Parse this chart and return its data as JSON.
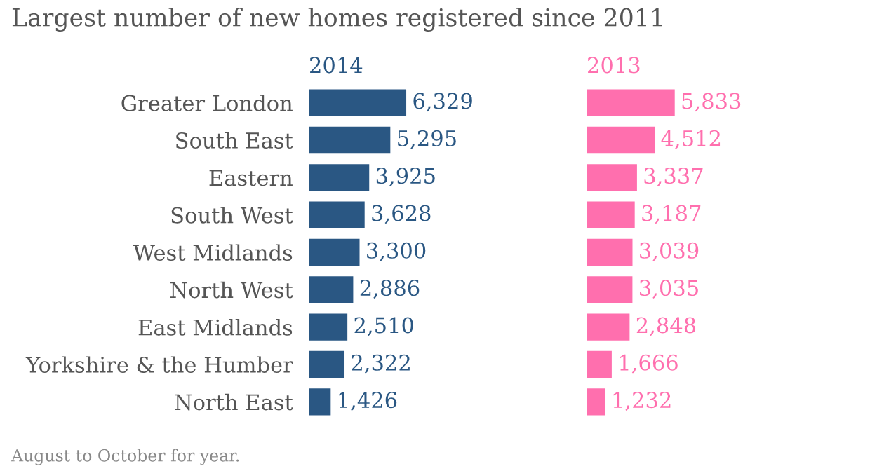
{
  "chart_data": [
    {
      "type": "bar",
      "orientation": "horizontal",
      "title": "Largest number of new homes registered since 2011",
      "subtitle": "2014",
      "categories": [
        "Greater London",
        "South East",
        "Eastern",
        "South West",
        "West Midlands",
        "North West",
        "East Midlands",
        "Yorkshire & the Humber",
        "North East"
      ],
      "series": [
        {
          "color": "#2a5783",
          "values": [
            6329,
            5295,
            3925,
            3628,
            3300,
            2886,
            2510,
            2322,
            1426
          ],
          "value_labels": [
            "6,329",
            "5,295",
            "3,925",
            "3,628",
            "3,300",
            "2,886",
            "2,510",
            "2,322",
            "1,426"
          ]
        }
      ],
      "tick_labels": "y",
      "grid": false,
      "legend": false,
      "annotations": [
        "August to October for year."
      ]
    },
    {
      "type": "bar",
      "orientation": "horizontal",
      "subtitle": "2013",
      "categories": [
        null,
        null,
        null,
        null,
        null,
        null,
        null,
        null,
        null
      ],
      "series": [
        {
          "color": "#ff6fae",
          "values": [
            5833,
            4512,
            3337,
            3187,
            3039,
            3035,
            2848,
            1666,
            1232
          ],
          "value_labels": [
            "5,833",
            "4,512",
            "3,337",
            "3,187",
            "3,039",
            "3,035",
            "2,848",
            "1,666",
            "1,232"
          ]
        }
      ],
      "tick_labels": false,
      "grid": false,
      "legend": false
    }
  ]
}
